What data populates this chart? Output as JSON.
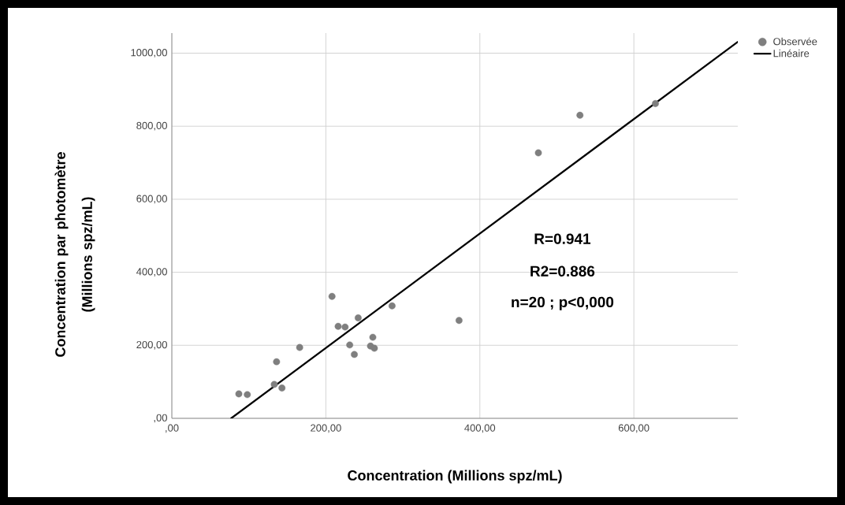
{
  "chart_data": {
    "type": "scatter",
    "xlabel": "Concentration (Millions spz/mL)",
    "ylabel": "Concentration par photomètre (Millions spz/mL)",
    "xlim": [
      0,
      735
    ],
    "ylim": [
      0,
      1055
    ],
    "xticks": [
      {
        "value": 0,
        "label": ",00"
      },
      {
        "value": 200,
        "label": "200,00"
      },
      {
        "value": 400,
        "label": "400,00"
      },
      {
        "value": 600,
        "label": "600,00"
      }
    ],
    "yticks": [
      {
        "value": 0,
        "label": ",00"
      },
      {
        "value": 200,
        "label": "200,00"
      },
      {
        "value": 400,
        "label": "400,00"
      },
      {
        "value": 600,
        "label": "600,00"
      },
      {
        "value": 800,
        "label": "800,00"
      },
      {
        "value": 1000,
        "label": "1000,00"
      }
    ],
    "grid": true,
    "legend": "top right",
    "marker": "circle",
    "series": [
      {
        "name": "Observée",
        "color": "#7f7f7f",
        "x": [
          87,
          98,
          133,
          143,
          136,
          166,
          208,
          216,
          225,
          231,
          237,
          242,
          258,
          261,
          263,
          286,
          373,
          476,
          530,
          628
        ],
        "values": [
          67,
          65,
          93,
          83,
          155,
          194,
          334,
          252,
          250,
          201,
          175,
          275,
          198,
          222,
          192,
          308,
          268,
          727,
          830,
          862
        ]
      },
      {
        "name": "Linéaire",
        "type": "line",
        "marker": "none",
        "color": "#000000",
        "x": [
          77,
          735
        ],
        "values": [
          0,
          1031
        ]
      }
    ],
    "annotations": [
      "R=0.941",
      "R2=0.886",
      "n=20 ; p<0,000"
    ]
  }
}
